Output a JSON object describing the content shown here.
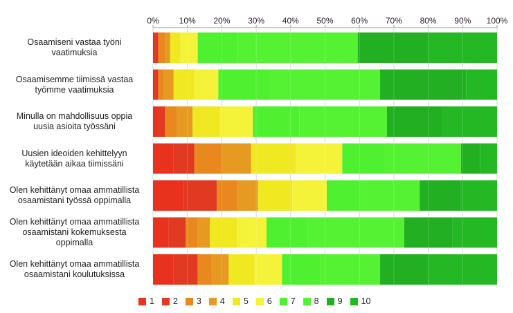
{
  "chart_data": {
    "type": "bar",
    "orientation": "horizontal",
    "stacked": true,
    "xlim": [
      0,
      100
    ],
    "x_tick_labels": [
      "0%",
      "10%",
      "20%",
      "30%",
      "40%",
      "50%",
      "60%",
      "70%",
      "80%",
      "90%",
      "100%"
    ],
    "grid": true,
    "legend_position": "bottom",
    "categories": [
      [
        "Osaamiseni vastaa työni",
        "vaatimuksia"
      ],
      [
        "Osaamisemme tiimissä vastaa",
        "työmme vaatimuksia"
      ],
      [
        "Minulla on mahdollisuus oppia",
        "uusia asioita työssäni"
      ],
      [
        "Uusien ideoiden kehittelyyn",
        "käytetään aikaa tiimissäni"
      ],
      [
        "Olen kehittänyt omaa ammatillista",
        "osaamistani työssä oppimalla"
      ],
      [
        "Olen kehittänyt omaa ammatillista",
        "osaamistani kokemuksesta",
        "oppimalla"
      ],
      [
        "Olen kehittänyt omaa ammatillista",
        "osaamistani koulutuksissa"
      ]
    ],
    "series": [
      {
        "name": "1",
        "color": "#e8321e",
        "values": [
          0.5,
          0.5,
          1.5,
          6,
          9,
          4.5,
          6
        ]
      },
      {
        "name": "2",
        "color": "#e03a22",
        "values": [
          1,
          1,
          2,
          6,
          9.5,
          5,
          7
        ]
      },
      {
        "name": "3",
        "color": "#e8881e",
        "values": [
          2,
          1.5,
          3.5,
          8,
          6,
          3.5,
          4
        ]
      },
      {
        "name": "4",
        "color": "#e69a22",
        "values": [
          1.5,
          3,
          4.5,
          8.5,
          6,
          3.5,
          5
        ]
      },
      {
        "name": "5",
        "color": "#f0e820",
        "values": [
          3,
          6,
          8,
          13,
          10,
          8,
          7.5
        ]
      },
      {
        "name": "6",
        "color": "#f5f23a",
        "values": [
          5,
          7,
          9.5,
          13.5,
          10,
          8.5,
          8
        ]
      },
      {
        "name": "7",
        "color": "#4ef030",
        "values": [
          11.5,
          15,
          13.5,
          12,
          10,
          12,
          11
        ]
      },
      {
        "name": "8",
        "color": "#55f233",
        "values": [
          35,
          32,
          25.5,
          22.5,
          17,
          28,
          17.5
        ]
      },
      {
        "name": "9",
        "color": "#22b022",
        "values": [
          20.5,
          25,
          16,
          5.5,
          12,
          14,
          14
        ]
      },
      {
        "name": "10",
        "color": "#25b825",
        "values": [
          20,
          9,
          16,
          5,
          10.5,
          13,
          20
        ]
      }
    ]
  }
}
